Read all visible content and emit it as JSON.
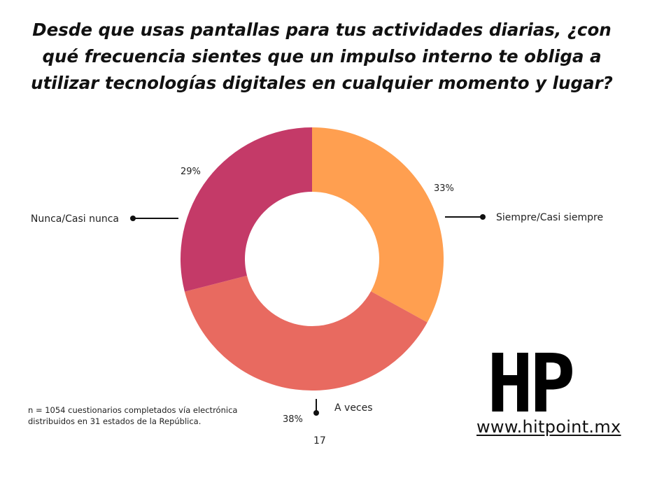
{
  "chart_data": {
    "type": "pie",
    "title": "Desde que usas pantallas para tus actividades diarias, ¿con qué frecuencia sientes que un impulso interno te obliga a utilizar tecnologías digitales en cualquier momento y lugar?",
    "categories": [
      "Siempre/Casi siempre",
      "A veces",
      "Nunca/Casi nunca"
    ],
    "values": [
      33,
      38,
      29
    ],
    "value_labels": [
      "33%",
      "38%",
      "29%"
    ],
    "colors": [
      "#FF9F50",
      "#E86A60",
      "#C43A68"
    ],
    "donut": true
  },
  "footnote": {
    "line1": "n = 1054 cuestionarios completados vía electrónica",
    "line2": "distribuidos en 31 estados de la República."
  },
  "page_number": "17",
  "brand": {
    "logo_text": "HP",
    "url": "www.hitpoint.mx"
  }
}
